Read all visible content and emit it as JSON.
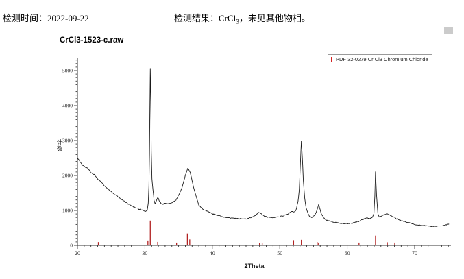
{
  "header": {
    "test_time": {
      "label": "检测时间：",
      "value": "2022-09-22"
    },
    "result": {
      "label": "检测结果：",
      "formula": "CrCl",
      "formula_sub": "3",
      "note": "，未见其他物相。"
    }
  },
  "chart": {
    "title": "CrCl3-1523-c.raw",
    "legend": {
      "label": "PDF 32-0279 Cr Cl3 Chromium Chloride",
      "marker_color": "#d42222"
    },
    "x_axis": {
      "label": "2Theta",
      "ticks": [
        20,
        30,
        40,
        50,
        60,
        70
      ],
      "min": 20,
      "max": 75.1,
      "minor_step": 1
    },
    "y_axis": {
      "label": "计数",
      "ticks": [
        0,
        1000,
        2000,
        3000,
        4000,
        5000
      ],
      "min": 0,
      "max": 5350,
      "minor_step": 100
    },
    "colors": {
      "curve": "#1a1a1a",
      "reference_bars": "#b22222",
      "axis": "#333333"
    }
  },
  "chart_data": {
    "type": "line",
    "title": "CrCl3-1523-c.raw",
    "xlabel": "2Theta",
    "ylabel": "计数",
    "xlim": [
      20,
      75.1
    ],
    "ylim": [
      0,
      5350
    ],
    "noise_amplitude": 20,
    "series": [
      {
        "name": "CrCl3-1523-c.raw",
        "points": [
          [
            20.0,
            2500
          ],
          [
            20.2,
            2450
          ],
          [
            20.5,
            2360
          ],
          [
            20.8,
            2300
          ],
          [
            21.1,
            2250
          ],
          [
            21.5,
            2215
          ],
          [
            22.0,
            2080
          ],
          [
            22.5,
            2020
          ],
          [
            23.0,
            1900
          ],
          [
            23.6,
            1800
          ],
          [
            24.0,
            1700
          ],
          [
            24.6,
            1610
          ],
          [
            25.0,
            1540
          ],
          [
            25.6,
            1450
          ],
          [
            26.0,
            1390
          ],
          [
            26.6,
            1295
          ],
          [
            27.0,
            1260
          ],
          [
            27.6,
            1180
          ],
          [
            28.0,
            1140
          ],
          [
            28.6,
            1080
          ],
          [
            29.0,
            1050
          ],
          [
            29.7,
            1000
          ],
          [
            30.1,
            965
          ],
          [
            30.35,
            1000
          ],
          [
            30.5,
            1200
          ],
          [
            30.6,
            1700
          ],
          [
            30.68,
            2600
          ],
          [
            30.74,
            3900
          ],
          [
            30.8,
            5060
          ],
          [
            30.88,
            4100
          ],
          [
            30.95,
            2700
          ],
          [
            31.05,
            1900
          ],
          [
            31.2,
            1600
          ],
          [
            31.35,
            1300
          ],
          [
            31.5,
            1180
          ],
          [
            31.7,
            1280
          ],
          [
            31.9,
            1370
          ],
          [
            32.1,
            1300
          ],
          [
            32.4,
            1195
          ],
          [
            32.7,
            1180
          ],
          [
            33.0,
            1210
          ],
          [
            33.4,
            1190
          ],
          [
            33.8,
            1205
          ],
          [
            34.2,
            1240
          ],
          [
            34.6,
            1300
          ],
          [
            35.0,
            1430
          ],
          [
            35.5,
            1650
          ],
          [
            36.0,
            2000
          ],
          [
            36.35,
            2200
          ],
          [
            36.7,
            2100
          ],
          [
            37.0,
            1850
          ],
          [
            37.3,
            1600
          ],
          [
            37.6,
            1400
          ],
          [
            38.0,
            1150
          ],
          [
            38.5,
            1050
          ],
          [
            39.0,
            1000
          ],
          [
            39.5,
            960
          ],
          [
            40.0,
            900
          ],
          [
            41.0,
            850
          ],
          [
            42.0,
            800
          ],
          [
            43.0,
            780
          ],
          [
            44.0,
            765
          ],
          [
            45.0,
            760
          ],
          [
            45.7,
            790
          ],
          [
            46.3,
            850
          ],
          [
            46.9,
            950
          ],
          [
            47.3,
            900
          ],
          [
            47.7,
            840
          ],
          [
            48.2,
            805
          ],
          [
            48.8,
            795
          ],
          [
            49.4,
            805
          ],
          [
            50.0,
            820
          ],
          [
            50.6,
            855
          ],
          [
            51.2,
            890
          ],
          [
            51.8,
            975
          ],
          [
            52.1,
            950
          ],
          [
            52.4,
            1000
          ],
          [
            52.7,
            1250
          ],
          [
            52.9,
            1600
          ],
          [
            53.05,
            2300
          ],
          [
            53.2,
            2990
          ],
          [
            53.35,
            2500
          ],
          [
            53.5,
            1850
          ],
          [
            53.7,
            1350
          ],
          [
            53.9,
            1080
          ],
          [
            54.2,
            900
          ],
          [
            54.5,
            810
          ],
          [
            54.8,
            800
          ],
          [
            55.1,
            840
          ],
          [
            55.4,
            950
          ],
          [
            55.6,
            1060
          ],
          [
            55.78,
            1175
          ],
          [
            55.95,
            1040
          ],
          [
            56.2,
            890
          ],
          [
            56.5,
            790
          ],
          [
            56.9,
            730
          ],
          [
            57.4,
            700
          ],
          [
            58.0,
            665
          ],
          [
            58.6,
            645
          ],
          [
            59.2,
            630
          ],
          [
            59.8,
            620
          ],
          [
            60.4,
            625
          ],
          [
            61.0,
            645
          ],
          [
            61.6,
            685
          ],
          [
            62.2,
            740
          ],
          [
            62.9,
            790
          ],
          [
            63.3,
            765
          ],
          [
            63.7,
            795
          ],
          [
            63.95,
            900
          ],
          [
            64.1,
            1400
          ],
          [
            64.2,
            2100
          ],
          [
            64.35,
            1450
          ],
          [
            64.55,
            900
          ],
          [
            64.8,
            810
          ],
          [
            65.1,
            850
          ],
          [
            65.5,
            880
          ],
          [
            65.9,
            905
          ],
          [
            66.3,
            870
          ],
          [
            66.8,
            825
          ],
          [
            67.3,
            765
          ],
          [
            67.9,
            715
          ],
          [
            68.5,
            680
          ],
          [
            69.2,
            645
          ],
          [
            70.0,
            600
          ],
          [
            70.8,
            575
          ],
          [
            71.6,
            560
          ],
          [
            72.4,
            550
          ],
          [
            73.2,
            548
          ],
          [
            74.0,
            558
          ],
          [
            74.6,
            585
          ],
          [
            75.1,
            615
          ]
        ]
      }
    ],
    "reference_pattern": {
      "name": "PDF 32-0279 Cr Cl3 Chromium Chloride",
      "peaks": [
        [
          23.1,
          85
        ],
        [
          30.45,
          130
        ],
        [
          30.8,
          700
        ],
        [
          31.9,
          90
        ],
        [
          34.7,
          70
        ],
        [
          36.3,
          330
        ],
        [
          36.65,
          160
        ],
        [
          47.0,
          60
        ],
        [
          47.4,
          60
        ],
        [
          52.05,
          140
        ],
        [
          53.2,
          150
        ],
        [
          55.55,
          85
        ],
        [
          55.75,
          70
        ],
        [
          61.75,
          70
        ],
        [
          64.2,
          270
        ],
        [
          65.95,
          80
        ],
        [
          67.05,
          70
        ]
      ]
    }
  }
}
